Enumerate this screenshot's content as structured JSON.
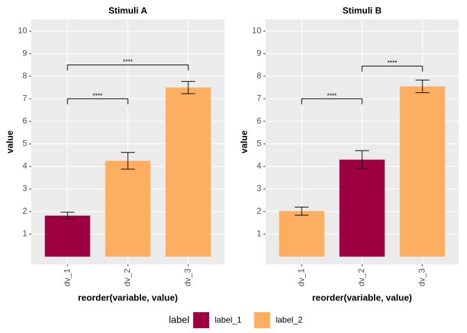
{
  "chart_data": [
    {
      "type": "bar",
      "title": "Stimuli A",
      "xlabel": "reorder(variable, value)",
      "ylabel": "value",
      "categories": [
        "dv_1",
        "dv_2",
        "dv_3"
      ],
      "values": [
        1.82,
        4.25,
        7.5
      ],
      "errors": [
        0.15,
        0.37,
        0.27
      ],
      "colors": [
        "#9e0142",
        "#fdae61",
        "#fdae61"
      ],
      "ylim": [
        -0.34,
        10.52
      ],
      "yticks": [
        1,
        2,
        3,
        4,
        5,
        6,
        7,
        8,
        9,
        10
      ],
      "grid": true,
      "brackets": [
        {
          "groups": [
            "dv_1",
            "dv_2"
          ],
          "y": 7.0,
          "label": "****"
        },
        {
          "groups": [
            "dv_1",
            "dv_3"
          ],
          "y": 8.5,
          "label": "****"
        }
      ]
    },
    {
      "type": "bar",
      "title": "Stimuli B",
      "xlabel": "reorder(variable, value)",
      "ylabel": "value",
      "categories": [
        "dv_1",
        "dv_2",
        "dv_3"
      ],
      "values": [
        2.02,
        4.3,
        7.55
      ],
      "errors": [
        0.18,
        0.4,
        0.28
      ],
      "colors": [
        "#fdae61",
        "#9e0142",
        "#fdae61"
      ],
      "ylim": [
        -0.34,
        10.52
      ],
      "yticks": [
        1,
        2,
        3,
        4,
        5,
        6,
        7,
        8,
        9,
        10
      ],
      "grid": true,
      "brackets": [
        {
          "groups": [
            "dv_1",
            "dv_2"
          ],
          "y": 7.0,
          "label": "****"
        },
        {
          "groups": [
            "dv_2",
            "dv_3"
          ],
          "y": 8.45,
          "label": "****"
        }
      ]
    }
  ],
  "legend": {
    "title": "label",
    "entries": [
      {
        "name": "label_1",
        "color": "#9e0142"
      },
      {
        "name": "label_2",
        "color": "#fdae61"
      }
    ]
  }
}
